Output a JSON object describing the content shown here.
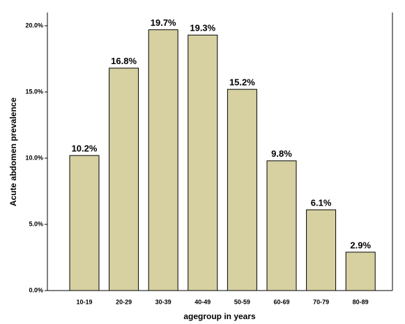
{
  "chart_data": {
    "type": "bar",
    "categories": [
      "10-19",
      "20-29",
      "30-39",
      "40-49",
      "50-59",
      "60-69",
      "70-79",
      "80-89"
    ],
    "values": [
      10.2,
      16.8,
      19.7,
      19.3,
      15.2,
      9.8,
      6.1,
      2.9
    ],
    "value_labels": [
      "10.2%",
      "16.8%",
      "19.7%",
      "19.3%",
      "15.2%",
      "9.8%",
      "6.1%",
      "2.9%"
    ],
    "color": "#d7d1a2",
    "x_label": "agegroup in years",
    "y_label": "Acute abdomen prevalence",
    "ylim": [
      0,
      21
    ],
    "yticks": [
      {
        "value": 0,
        "label": "0.0%"
      },
      {
        "value": 5,
        "label": "5.0%"
      },
      {
        "value": 10,
        "label": "10.0%"
      },
      {
        "value": 15,
        "label": "15.0%"
      },
      {
        "value": 20,
        "label": "20.0%"
      }
    ]
  }
}
